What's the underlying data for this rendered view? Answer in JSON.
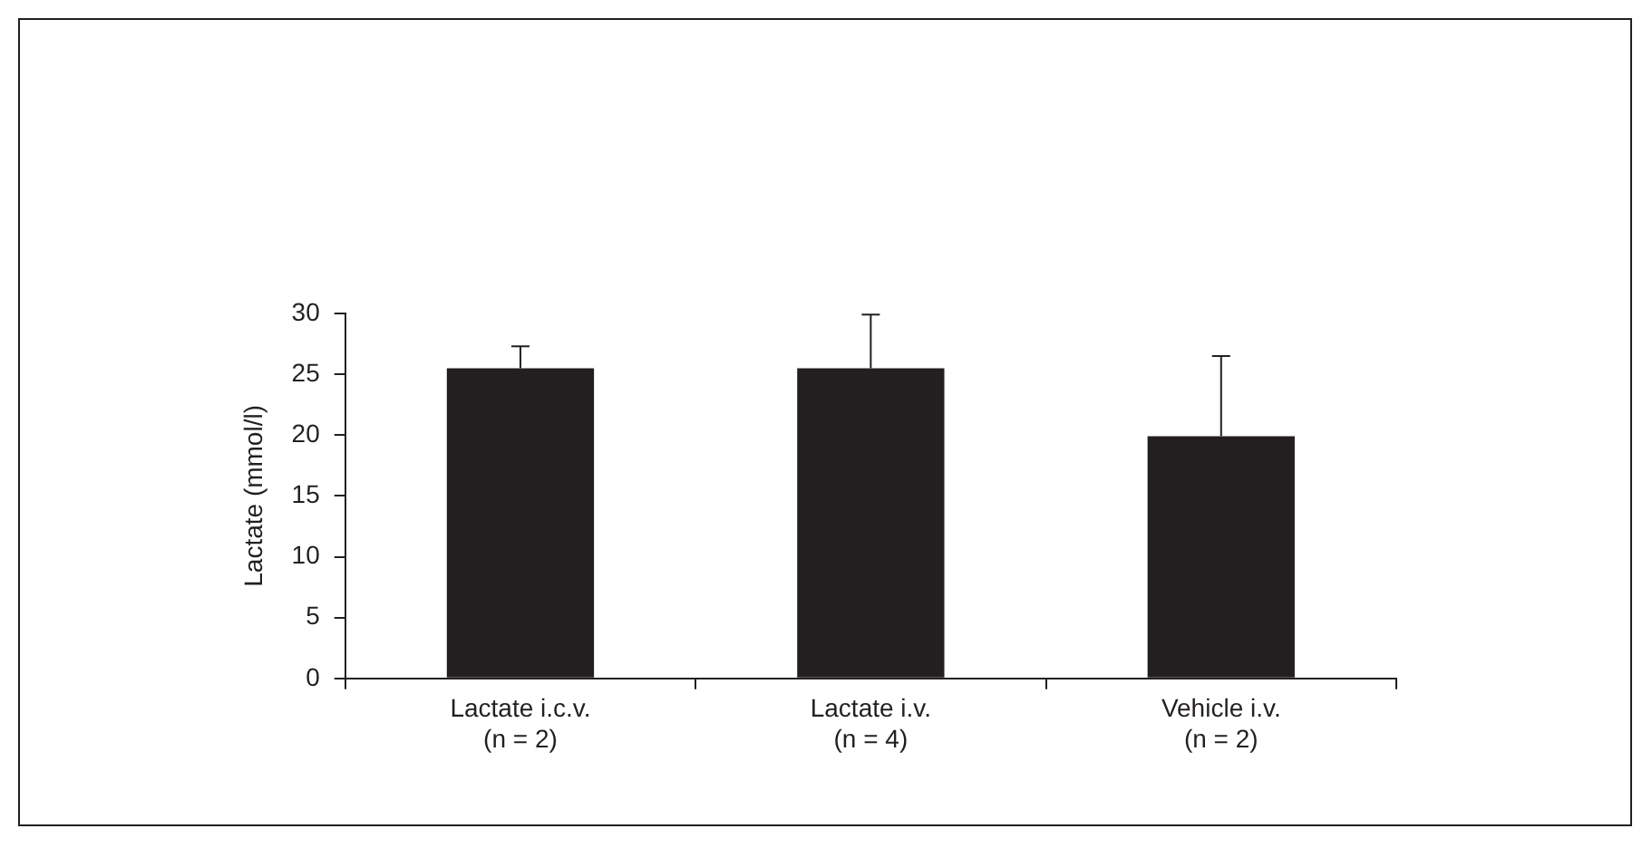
{
  "chart_data": {
    "type": "bar",
    "ylabel": "Lactate (mmol/l)",
    "categories": [
      "Lactate i.c.v.\n(n = 2)",
      "Lactate i.v.\n(n = 4)",
      "Vehicle i.v.\n(n = 2)"
    ],
    "values": [
      25.5,
      25.5,
      19.9
    ],
    "errors": [
      [
        25.5,
        27.3
      ],
      [
        25.5,
        29.9
      ],
      [
        19.9,
        26.5
      ]
    ],
    "color": "#231f20",
    "ylim": [
      0,
      30
    ],
    "yticks": [
      0,
      5,
      10,
      15,
      20,
      25,
      30
    ],
    "grid": false,
    "legend": false
  }
}
